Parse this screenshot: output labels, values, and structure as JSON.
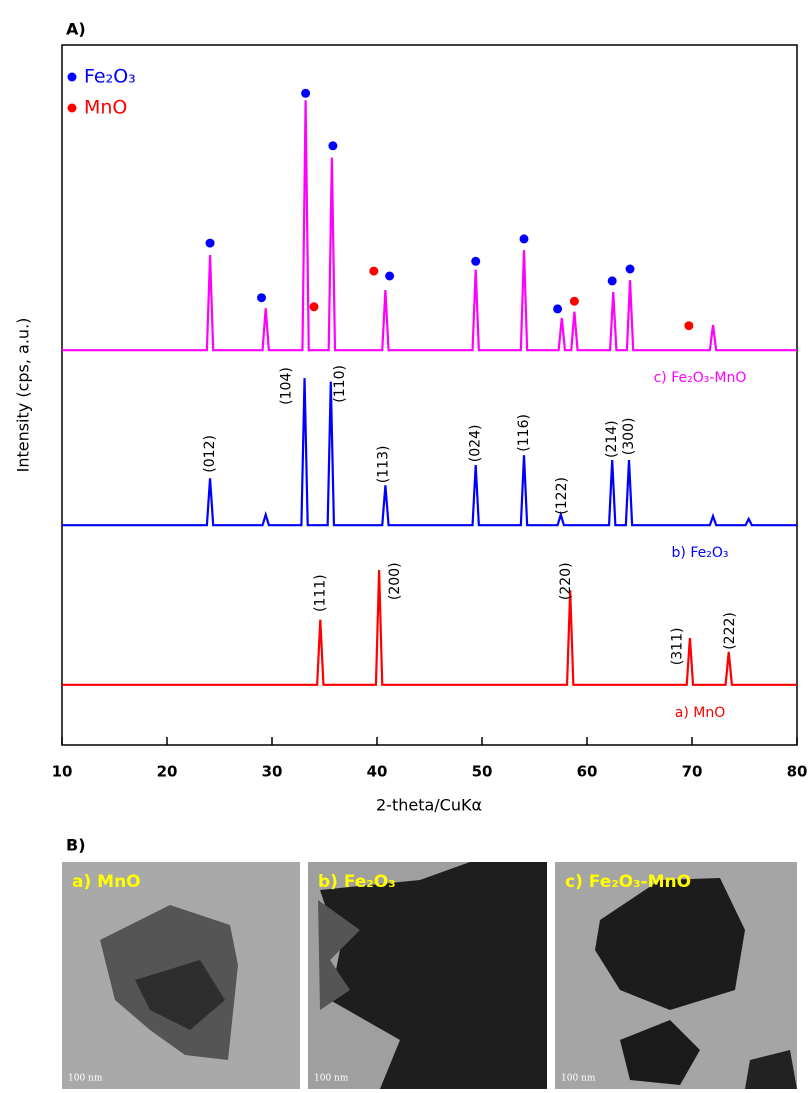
{
  "chart_data": {
    "type": "line",
    "title": "A)",
    "xlabel": "2-theta/CuKα",
    "ylabel": "Intensity (cps, a.u.)",
    "xlim": [
      10,
      80
    ],
    "xticks": [
      10,
      20,
      30,
      40,
      50,
      60,
      70,
      80
    ],
    "ylim": [
      0,
      100
    ],
    "series": [
      {
        "name": "c) Fe₂O₃-MnO",
        "type": "line",
        "color": "#ff00ff",
        "x": [
          10,
          23.8,
          24.1,
          24.4,
          29.1,
          29.4,
          29.7,
          32.9,
          33.2,
          33.5,
          35.4,
          35.7,
          36,
          40.5,
          40.8,
          41.1,
          49.1,
          49.4,
          49.7,
          53.7,
          54,
          54.3,
          57.3,
          57.6,
          57.9,
          58.5,
          58.8,
          59.1,
          62.2,
          62.5,
          62.8,
          63.8,
          64.1,
          64.4,
          71.7,
          72,
          72.3,
          80
        ],
        "values": [
          56.4,
          56.4,
          70,
          56.4,
          56.4,
          62.4,
          56.4,
          56.4,
          92.1,
          56.4,
          56.4,
          83.9,
          56.4,
          56.4,
          65,
          56.4,
          56.4,
          67.9,
          56.4,
          56.4,
          70.7,
          56.4,
          56.4,
          61,
          56.4,
          56.4,
          61.9,
          56.4,
          56.4,
          64.7,
          56.4,
          56.4,
          66.4,
          56.4,
          56.4,
          60,
          56.4,
          56.4
        ]
      },
      {
        "name": "b) Fe₂O₃",
        "type": "line",
        "color": "#0000ff",
        "x": [
          10,
          23.8,
          24.1,
          24.4,
          29.1,
          29.4,
          29.7,
          32.8,
          33.1,
          33.4,
          35.3,
          35.6,
          35.9,
          40.5,
          40.8,
          41.1,
          49.1,
          49.4,
          49.7,
          53.7,
          54,
          54.3,
          57.2,
          57.5,
          57.8,
          62.1,
          62.4,
          62.7,
          63.7,
          64,
          64.3,
          71.7,
          72,
          72.3,
          75.1,
          75.4,
          75.7,
          80
        ],
        "values": [
          31.4,
          31.4,
          38.1,
          31.4,
          31.4,
          32.9,
          31.4,
          31.4,
          52.4,
          31.4,
          31.4,
          51.9,
          31.4,
          31.4,
          37.1,
          31.4,
          31.4,
          40,
          31.4,
          31.4,
          41.4,
          31.4,
          31.4,
          32.9,
          31.4,
          31.4,
          40.7,
          31.4,
          31.4,
          40.7,
          31.4,
          31.4,
          32.7,
          31.4,
          31.4,
          32.3,
          31.4,
          31.4
        ],
        "annotations": [
          {
            "text": "(012)",
            "x": 24.1,
            "y": 38.9
          },
          {
            "text": "(104)",
            "x": 31.4,
            "y": 48.6
          },
          {
            "text": "(110)",
            "x": 36.5,
            "y": 48.9
          },
          {
            "text": "(113)",
            "x": 40.6,
            "y": 37.4
          },
          {
            "text": "(024)",
            "x": 49.4,
            "y": 40.4
          },
          {
            "text": "(116)",
            "x": 54,
            "y": 41.9
          },
          {
            "text": "(122)",
            "x": 57.6,
            "y": 32.9
          },
          {
            "text": "(214)",
            "x": 62.4,
            "y": 41
          },
          {
            "text": "(300)",
            "x": 64,
            "y": 41.4
          }
        ]
      },
      {
        "name": "a) MnO",
        "type": "line",
        "color": "#ff0000",
        "x": [
          10,
          34.3,
          34.6,
          34.9,
          39.9,
          40.2,
          40.5,
          58.1,
          58.4,
          58.7,
          69.5,
          69.8,
          70.1,
          73.2,
          73.5,
          73.8,
          80
        ],
        "values": [
          8.6,
          8.6,
          17.9,
          8.6,
          8.6,
          25,
          8.6,
          8.6,
          22.1,
          8.6,
          8.6,
          15.3,
          8.6,
          8.6,
          13.3,
          8.6,
          8.6
        ],
        "annotations": [
          {
            "text": "(111)",
            "x": 34.6,
            "y": 19
          },
          {
            "text": "(200)",
            "x": 41.7,
            "y": 20.7
          },
          {
            "text": "(220)",
            "x": 58,
            "y": 20.7
          },
          {
            "text": "(311)",
            "x": 68.6,
            "y": 11.4
          },
          {
            "text": "(222)",
            "x": 73.6,
            "y": 13.6
          }
        ]
      },
      {
        "name": "Fe₂O₃",
        "type": "scatter",
        "color": "#0000ff",
        "x": [
          24.1,
          29,
          33.2,
          35.8,
          41.2,
          49.4,
          54,
          57.2,
          62.4,
          64.1
        ],
        "values": [
          71.7,
          63.9,
          93.1,
          85.6,
          67,
          69.1,
          72.3,
          62.3,
          66.3,
          68
        ]
      },
      {
        "name": "MnO",
        "type": "scatter",
        "color": "#ff0000",
        "x": [
          34,
          39.7,
          58.8,
          69.7
        ],
        "values": [
          62.6,
          67.7,
          63.4,
          59.9
        ]
      }
    ]
  },
  "panel_b": {
    "title": "B)",
    "images": [
      {
        "label": "a) MnO",
        "scale_bar": "100 nm"
      },
      {
        "label": "b) Fe₂O₃",
        "scale_bar": "100 nm"
      },
      {
        "label": "c) Fe₂O₃-MnO",
        "scale_bar": "100 nm"
      }
    ]
  }
}
